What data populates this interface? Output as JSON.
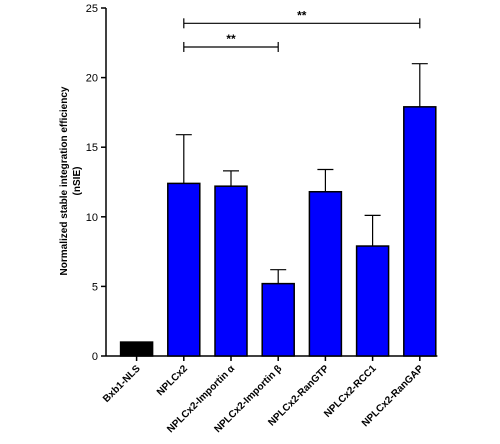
{
  "chart_data": {
    "type": "bar",
    "categories": [
      "Bxb1-NLS",
      "NPLCx2",
      "NPLCx2-Importin α",
      "NPLCx2-Importin β",
      "NPLCx2-RanGTP",
      "NPLCx2-RCC1",
      "NPLCx2-RanGAP"
    ],
    "values": [
      1.0,
      12.4,
      12.2,
      5.2,
      11.8,
      7.9,
      17.9
    ],
    "errors": [
      0,
      3.5,
      1.1,
      1.0,
      1.6,
      2.2,
      3.1
    ],
    "colors": [
      "#000000",
      "#0000ff",
      "#0000ff",
      "#0000ff",
      "#0000ff",
      "#0000ff",
      "#0000ff"
    ],
    "ylabel_line1": "Normalized stable integration efficiency",
    "ylabel_line2": "(nSIE)",
    "ylim": [
      0,
      25
    ],
    "yticks": [
      0,
      5,
      10,
      15,
      20,
      25
    ],
    "grid": false,
    "annotations": [
      {
        "from": "NPLCx2",
        "to": "NPLCx2-RanGAP",
        "text": "**",
        "y": 23.9
      },
      {
        "from": "NPLCx2",
        "to": "NPLCx2-Importin β",
        "text": "**",
        "y": 22.2
      }
    ]
  }
}
